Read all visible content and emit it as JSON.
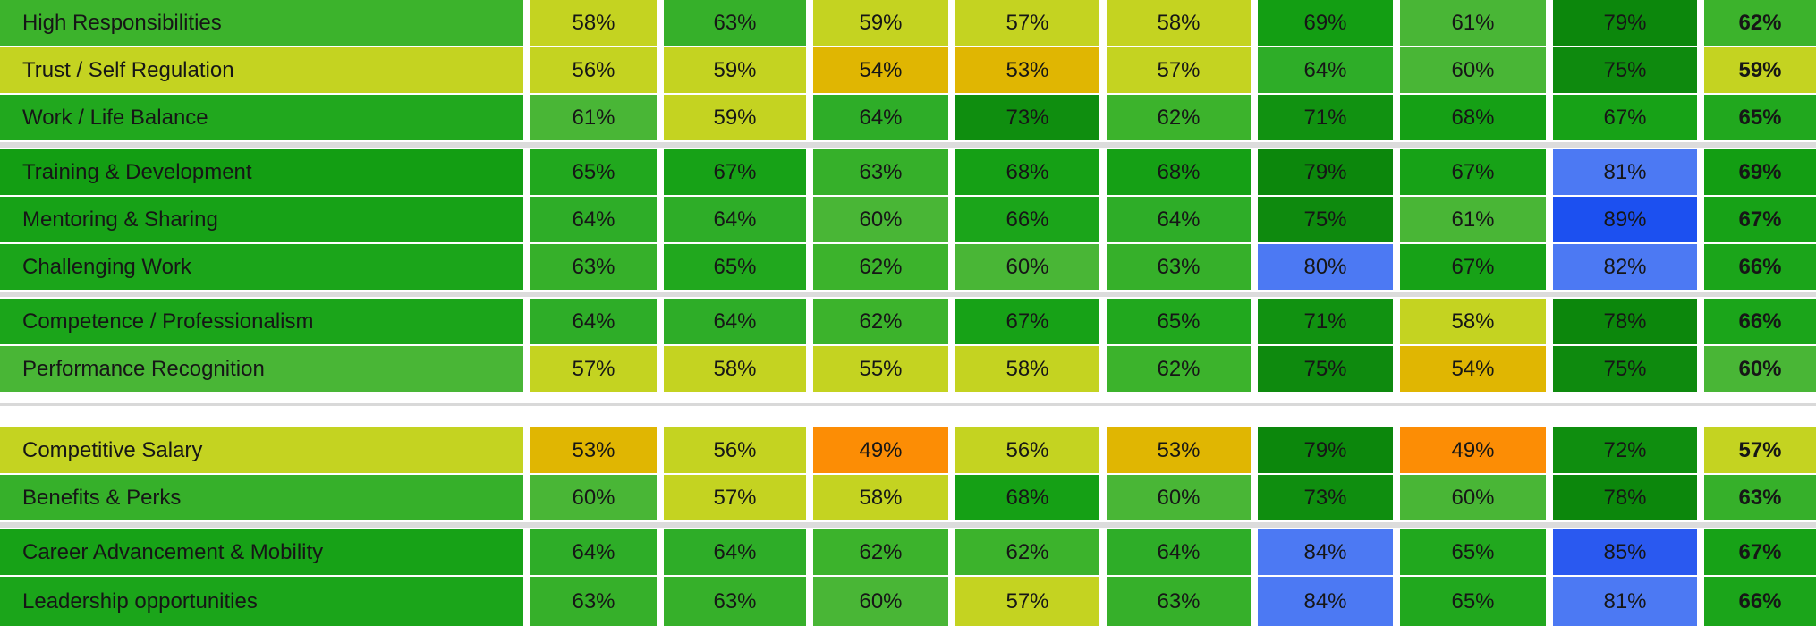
{
  "table": {
    "unit": "%",
    "rows": [
      {
        "label": "High Responsibilities",
        "values": [
          "58%",
          "63%",
          "59%",
          "57%",
          "58%",
          "69%",
          "61%",
          "79%"
        ],
        "total": "62%"
      },
      {
        "label": "Trust / Self Regulation",
        "values": [
          "56%",
          "59%",
          "54%",
          "53%",
          "57%",
          "64%",
          "60%",
          "75%"
        ],
        "total": "59%"
      },
      {
        "label": "Work / Life Balance",
        "values": [
          "61%",
          "59%",
          "64%",
          "73%",
          "62%",
          "71%",
          "68%",
          "67%"
        ],
        "total": "65%"
      },
      {
        "label": "Training & Development",
        "values": [
          "65%",
          "67%",
          "63%",
          "68%",
          "68%",
          "79%",
          "67%",
          "81%"
        ],
        "total": "69%"
      },
      {
        "label": "Mentoring & Sharing",
        "values": [
          "64%",
          "64%",
          "60%",
          "66%",
          "64%",
          "75%",
          "61%",
          "89%"
        ],
        "total": "67%"
      },
      {
        "label": "Challenging Work",
        "values": [
          "63%",
          "65%",
          "62%",
          "60%",
          "63%",
          "80%",
          "67%",
          "82%"
        ],
        "total": "66%"
      },
      {
        "label": "Competence / Professionalism",
        "values": [
          "64%",
          "64%",
          "62%",
          "67%",
          "65%",
          "71%",
          "58%",
          "78%"
        ],
        "total": "66%"
      },
      {
        "label": "Performance Recognition",
        "values": [
          "57%",
          "58%",
          "55%",
          "58%",
          "62%",
          "75%",
          "54%",
          "75%"
        ],
        "total": "60%"
      },
      {
        "label": "Competitive Salary",
        "values": [
          "53%",
          "56%",
          "49%",
          "56%",
          "53%",
          "79%",
          "49%",
          "72%"
        ],
        "total": "57%"
      },
      {
        "label": "Benefits & Perks",
        "values": [
          "60%",
          "57%",
          "58%",
          "68%",
          "60%",
          "73%",
          "60%",
          "78%"
        ],
        "total": "63%"
      },
      {
        "label": "Career Advancement & Mobility",
        "values": [
          "64%",
          "64%",
          "62%",
          "62%",
          "64%",
          "84%",
          "65%",
          "85%"
        ],
        "total": "67%"
      },
      {
        "label": "Leadership opportunities",
        "values": [
          "63%",
          "63%",
          "60%",
          "57%",
          "63%",
          "84%",
          "65%",
          "81%"
        ],
        "total": "66%"
      }
    ],
    "groups": [
      {
        "rows": [
          0,
          1,
          2
        ]
      },
      {
        "rows": [
          3,
          4,
          5
        ]
      },
      {
        "rows": [
          6,
          7
        ]
      },
      {
        "rows": [
          8,
          9
        ],
        "section_before": true
      },
      {
        "rows": [
          10,
          11
        ]
      }
    ]
  },
  "chart_data": {
    "type": "heatmap",
    "unit": "%",
    "row_labels": [
      "High Responsibilities",
      "Trust / Self Regulation",
      "Work / Life Balance",
      "Training & Development",
      "Mentoring & Sharing",
      "Challenging Work",
      "Competence / Professionalism",
      "Performance Recognition",
      "Competitive Salary",
      "Benefits & Perks",
      "Career Advancement & Mobility",
      "Leadership opportunities"
    ],
    "values": [
      [
        58,
        63,
        59,
        57,
        58,
        69,
        61,
        79
      ],
      [
        56,
        59,
        54,
        53,
        57,
        64,
        60,
        75
      ],
      [
        61,
        59,
        64,
        73,
        62,
        71,
        68,
        67
      ],
      [
        65,
        67,
        63,
        68,
        68,
        79,
        67,
        81
      ],
      [
        64,
        64,
        60,
        66,
        64,
        75,
        61,
        89
      ],
      [
        63,
        65,
        62,
        60,
        63,
        80,
        67,
        82
      ],
      [
        64,
        64,
        62,
        67,
        65,
        71,
        58,
        78
      ],
      [
        57,
        58,
        55,
        58,
        62,
        75,
        54,
        75
      ],
      [
        53,
        56,
        49,
        56,
        53,
        79,
        49,
        72
      ],
      [
        60,
        57,
        58,
        68,
        60,
        73,
        60,
        78
      ],
      [
        64,
        64,
        62,
        62,
        64,
        84,
        65,
        85
      ],
      [
        63,
        63,
        60,
        57,
        63,
        84,
        65,
        81
      ]
    ],
    "totals": [
      62,
      59,
      65,
      69,
      67,
      66,
      66,
      60,
      57,
      63,
      67,
      66
    ],
    "row_groups": [
      [
        0,
        1,
        2
      ],
      [
        3,
        4,
        5
      ],
      [
        6,
        7
      ],
      [
        8,
        9
      ],
      [
        10,
        11
      ]
    ],
    "section_break_after_row": 7,
    "notes": "Row label cell and bold total column share the color mapped from the row total; cell color encodes value (orange=low, gold, lime, greens, blue=80+)."
  },
  "colors": {
    "background": "#ffffff",
    "text": "#161616",
    "group_separator": "#dcdcdc",
    "section_line": "#d9d9d9",
    "scale": [
      {
        "min": 0,
        "color": "#FC8D05"
      },
      {
        "min": 50,
        "color": "#E0B602"
      },
      {
        "min": 55,
        "color": "#C4D321"
      },
      {
        "min": 60,
        "color": "#49B636"
      },
      {
        "min": 62,
        "color": "#3CB32C"
      },
      {
        "min": 63,
        "color": "#36B02A"
      },
      {
        "min": 64,
        "color": "#2EAD28"
      },
      {
        "min": 65,
        "color": "#21A81E"
      },
      {
        "min": 66,
        "color": "#1BA51A"
      },
      {
        "min": 67,
        "color": "#17A217"
      },
      {
        "min": 68,
        "color": "#15A015"
      },
      {
        "min": 69,
        "color": "#139E13"
      },
      {
        "min": 70,
        "color": "#119211"
      },
      {
        "min": 72,
        "color": "#0F8E0F"
      },
      {
        "min": 74,
        "color": "#0E8A0E"
      },
      {
        "min": 76,
        "color": "#0C870C"
      },
      {
        "min": 80,
        "color": "#4C79F3"
      },
      {
        "min": 85,
        "color": "#2A59F0"
      },
      {
        "min": 87,
        "color": "#1C50F0"
      }
    ]
  }
}
